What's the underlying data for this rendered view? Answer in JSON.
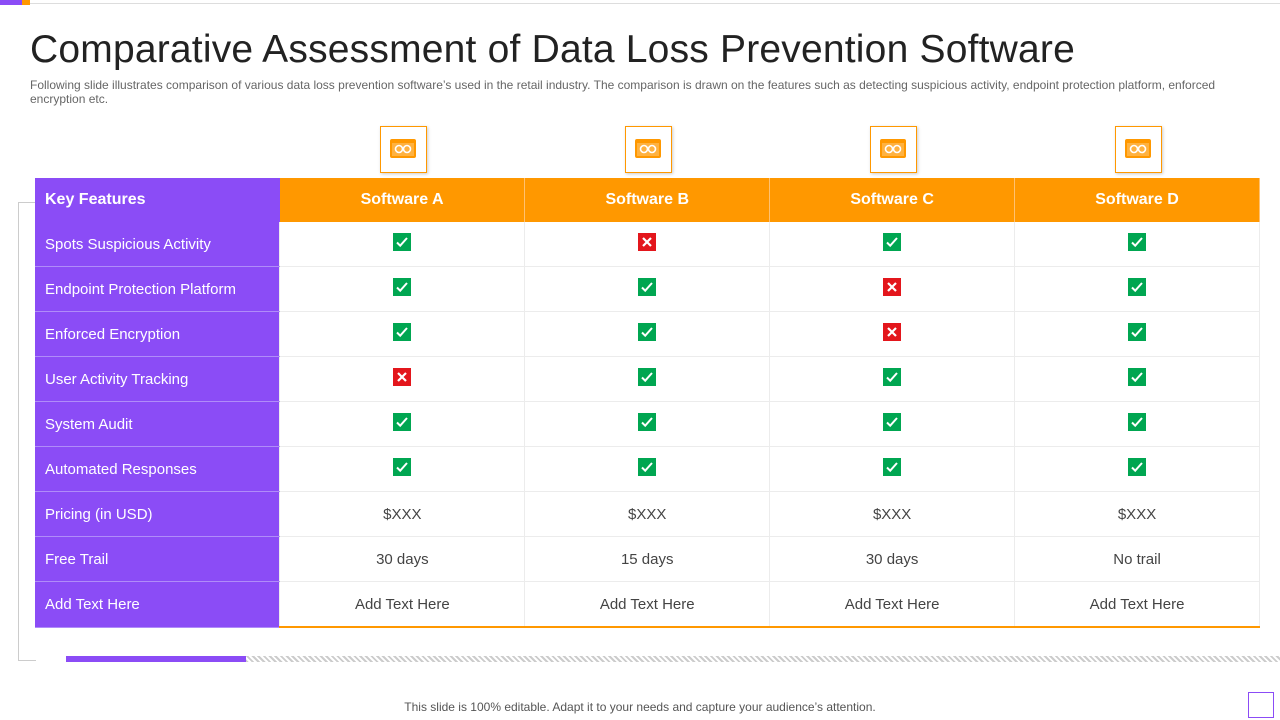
{
  "header": {
    "title": "Comparative Assessment of Data Loss Prevention Software",
    "subtitle": "Following slide illustrates comparison of various data loss prevention software’s used in the retail industry. The comparison is drawn on the features such as detecting suspicious activity, endpoint protection platform, enforced encryption etc."
  },
  "table": {
    "columns": [
      "Key Features",
      "Software  A",
      "Software  B",
      "Software  C",
      "Software  D"
    ],
    "rows": [
      [
        "Spots Suspicious Activity",
        true,
        false,
        true,
        true
      ],
      [
        "Endpoint Protection Platform",
        true,
        true,
        false,
        true
      ],
      [
        "Enforced Encryption",
        true,
        true,
        false,
        true
      ],
      [
        "User Activity Tracking",
        false,
        true,
        true,
        true
      ],
      [
        "System Audit",
        true,
        true,
        true,
        true
      ],
      [
        "Automated Responses",
        true,
        true,
        true,
        true
      ],
      [
        "Pricing (in USD)",
        "$XXX",
        "$XXX",
        "$XXX",
        "$XXX"
      ],
      [
        "Free Trail",
        "30 days",
        "15 days",
        "30 days",
        "No trail"
      ],
      [
        "Add Text Here",
        "Add Text Here",
        "Add Text Here",
        "Add Text Here",
        "Add Text Here"
      ]
    ]
  },
  "footer": "This slide is 100% editable. Adapt it to your needs and capture your audience’s attention."
}
